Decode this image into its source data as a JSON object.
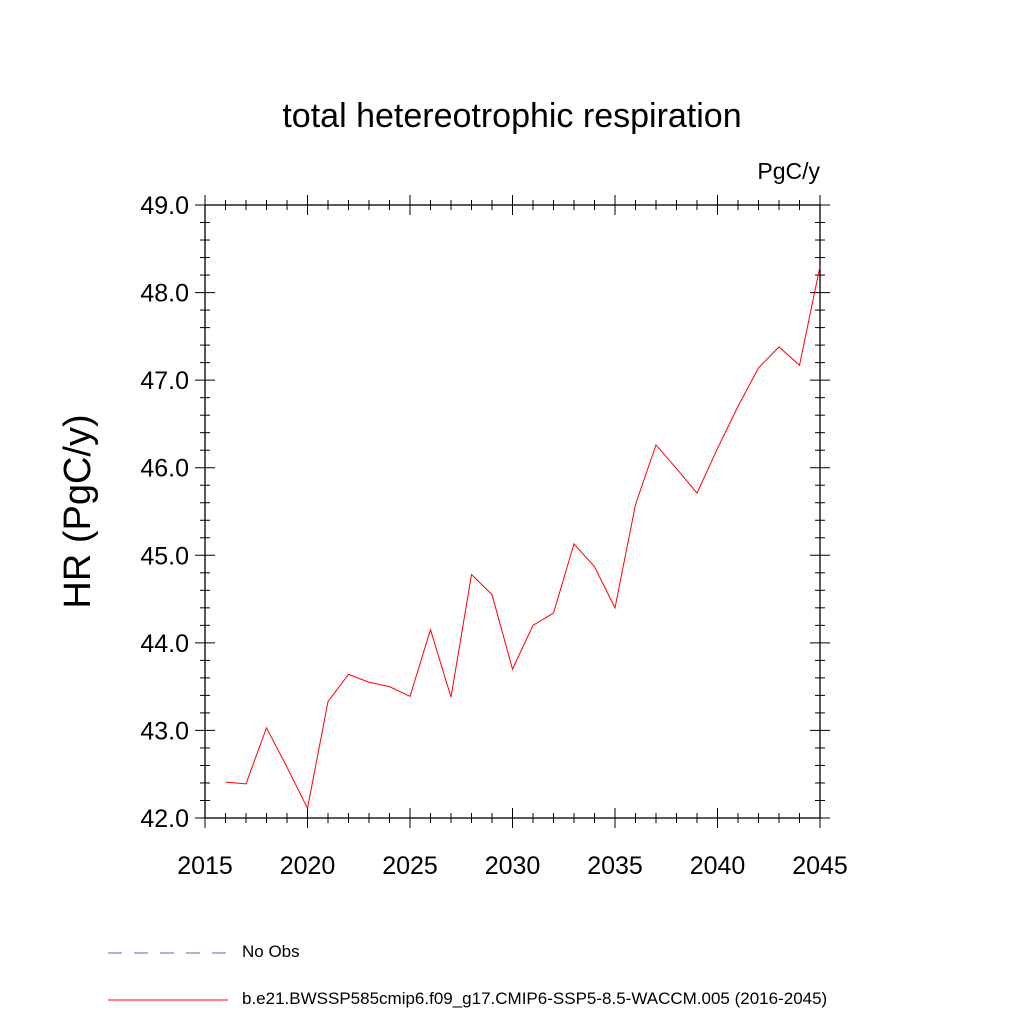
{
  "chart_data": {
    "type": "line",
    "title": "total hetereotrophic respiration",
    "units_label": "PgC/y",
    "xlabel": "",
    "ylabel": "HR  (PgC/y)",
    "xlim": [
      2015,
      2045
    ],
    "ylim": [
      42.0,
      49.0
    ],
    "xticks": [
      2015,
      2020,
      2025,
      2030,
      2035,
      2040,
      2045
    ],
    "xtick_labels": [
      "2015",
      "2020",
      "2025",
      "2030",
      "2035",
      "2040",
      "2045"
    ],
    "yticks": [
      42.0,
      43.0,
      44.0,
      45.0,
      46.0,
      47.0,
      48.0,
      49.0
    ],
    "ytick_labels": [
      "42.0",
      "43.0",
      "44.0",
      "45.0",
      "46.0",
      "47.0",
      "48.0",
      "49.0"
    ],
    "grid": false,
    "legend_position": "bottom",
    "series": [
      {
        "name": "b.e21.BWSSP585cmip6.f09_g17.CMIP6-SSP5-8.5-WACCM.005 (2016-2045)",
        "color": "#ff0000",
        "style": "solid",
        "x": [
          2016,
          2017,
          2018,
          2019,
          2020,
          2021,
          2022,
          2023,
          2024,
          2025,
          2026,
          2027,
          2028,
          2029,
          2030,
          2031,
          2032,
          2033,
          2034,
          2035,
          2036,
          2037,
          2038,
          2039,
          2040,
          2041,
          2042,
          2043,
          2044,
          2045
        ],
        "values": [
          42.41,
          42.39,
          43.03,
          42.58,
          42.11,
          43.33,
          43.64,
          43.55,
          43.5,
          43.39,
          44.15,
          43.38,
          44.78,
          44.55,
          43.7,
          44.2,
          44.34,
          45.13,
          44.87,
          44.4,
          45.58,
          46.26,
          45.99,
          45.71,
          46.22,
          46.7,
          47.14,
          47.38,
          47.17,
          48.3
        ]
      },
      {
        "name": "No Obs",
        "color": "#8080c0",
        "style": "dashed",
        "x": [],
        "values": []
      }
    ]
  }
}
